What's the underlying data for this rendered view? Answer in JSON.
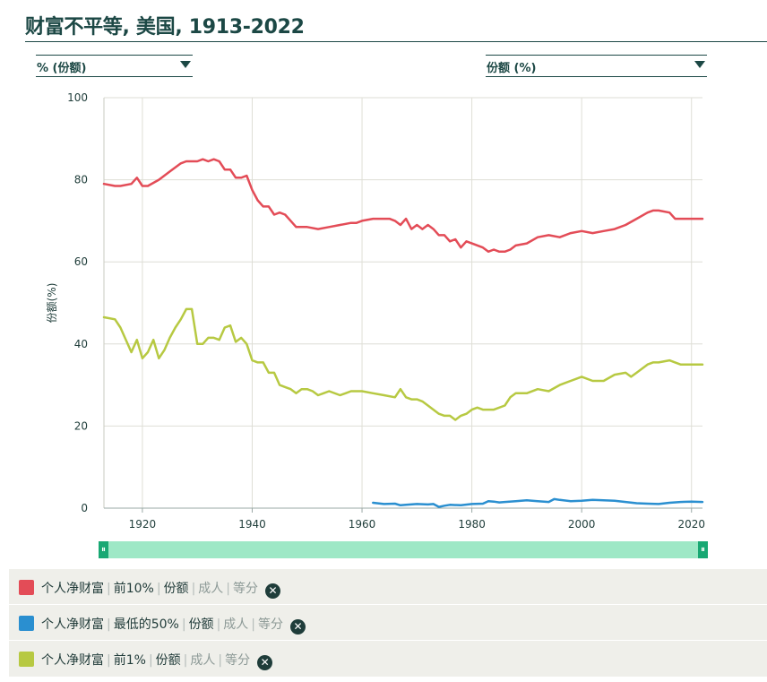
{
  "title": "财富不平等, 美国, 1913-2022",
  "selectors": {
    "left": {
      "label": "% (份额)"
    },
    "right": {
      "label": "份额 (%)"
    }
  },
  "colors": {
    "red": "#e34c57",
    "blue": "#2a8fd0",
    "green": "#b7c942",
    "accent": "#1c4845"
  },
  "slider": {
    "left_icon": "grip-icon",
    "right_icon": "grip-icon"
  },
  "chart_data": {
    "type": "line",
    "title": "财富不平等, 美国, 1913-2022",
    "xlabel": "",
    "ylabel": "份额(%)",
    "xlim": [
      1913,
      2022
    ],
    "ylim": [
      0,
      100
    ],
    "x_ticks": [
      1920,
      1940,
      1960,
      1980,
      2000,
      2020
    ],
    "y_ticks": [
      0,
      20,
      40,
      60,
      80,
      100
    ],
    "grid": true,
    "series": [
      {
        "name": "个人净财富 | 前10% | 份额",
        "color": "#e34c57",
        "x": [
          1913,
          1915,
          1916,
          1918,
          1919,
          1920,
          1921,
          1923,
          1925,
          1927,
          1928,
          1930,
          1931,
          1932,
          1933,
          1934,
          1935,
          1936,
          1937,
          1938,
          1939,
          1940,
          1941,
          1942,
          1943,
          1944,
          1945,
          1946,
          1947,
          1948,
          1950,
          1952,
          1954,
          1956,
          1958,
          1959,
          1960,
          1962,
          1964,
          1965,
          1966,
          1967,
          1968,
          1969,
          1970,
          1971,
          1972,
          1973,
          1974,
          1975,
          1976,
          1977,
          1978,
          1979,
          1980,
          1982,
          1983,
          1984,
          1985,
          1986,
          1987,
          1988,
          1990,
          1992,
          1994,
          1996,
          1998,
          2000,
          2002,
          2004,
          2006,
          2008,
          2010,
          2012,
          2013,
          2014,
          2016,
          2017,
          2018,
          2020,
          2022
        ],
        "values": [
          79,
          78.5,
          78.5,
          79,
          80.5,
          78.5,
          78.5,
          80,
          82,
          84,
          84.5,
          84.5,
          85,
          84.5,
          85,
          84.5,
          82.5,
          82.5,
          80.5,
          80.5,
          81,
          77.5,
          75,
          73.5,
          73.5,
          71.5,
          72,
          71.5,
          70,
          68.5,
          68.5,
          68,
          68.5,
          69,
          69.5,
          69.5,
          70,
          70.5,
          70.5,
          70.5,
          70,
          69,
          70.5,
          68,
          69,
          68,
          69,
          68,
          66.5,
          66.5,
          65,
          65.5,
          63.5,
          65,
          64.5,
          63.5,
          62.5,
          63,
          62.5,
          62.5,
          63,
          64,
          64.5,
          66,
          66.5,
          66,
          67,
          67.5,
          67,
          67.5,
          68,
          69,
          70.5,
          72,
          72.5,
          72.5,
          72,
          70.5,
          70.5,
          70.5,
          70.5
        ]
      },
      {
        "name": "个人净财富 | 最低的50% | 份额",
        "color": "#2a8fd0",
        "x": [
          1962,
          1964,
          1966,
          1967,
          1968,
          1970,
          1972,
          1973,
          1974,
          1975,
          1976,
          1978,
          1980,
          1982,
          1983,
          1984,
          1985,
          1986,
          1988,
          1990,
          1992,
          1994,
          1995,
          1996,
          1998,
          2000,
          2002,
          2004,
          2006,
          2008,
          2010,
          2012,
          2014,
          2016,
          2018,
          2020,
          2022
        ],
        "values": [
          1.3,
          1.0,
          1.1,
          0.7,
          0.8,
          1.0,
          0.9,
          1.0,
          0.3,
          0.6,
          0.8,
          0.7,
          1.0,
          1.1,
          1.7,
          1.6,
          1.4,
          1.5,
          1.7,
          1.9,
          1.7,
          1.5,
          2.2,
          2.0,
          1.7,
          1.8,
          2.0,
          1.9,
          1.8,
          1.5,
          1.2,
          1.1,
          1.0,
          1.3,
          1.5,
          1.6,
          1.5
        ]
      },
      {
        "name": "个人净财富 | 前1% | 份额",
        "color": "#b7c942",
        "x": [
          1913,
          1915,
          1916,
          1917,
          1918,
          1919,
          1920,
          1921,
          1922,
          1923,
          1924,
          1925,
          1926,
          1927,
          1928,
          1929,
          1930,
          1931,
          1932,
          1933,
          1934,
          1935,
          1936,
          1937,
          1938,
          1939,
          1940,
          1941,
          1942,
          1943,
          1944,
          1945,
          1946,
          1947,
          1948,
          1949,
          1950,
          1951,
          1952,
          1953,
          1954,
          1956,
          1957,
          1958,
          1959,
          1960,
          1962,
          1964,
          1966,
          1967,
          1968,
          1969,
          1970,
          1971,
          1972,
          1973,
          1974,
          1975,
          1976,
          1977,
          1978,
          1979,
          1980,
          1981,
          1982,
          1983,
          1984,
          1986,
          1987,
          1988,
          1989,
          1990,
          1992,
          1994,
          1996,
          1998,
          2000,
          2002,
          2004,
          2006,
          2008,
          2009,
          2010,
          2012,
          2013,
          2014,
          2016,
          2017,
          2018,
          2020,
          2022
        ],
        "values": [
          46.5,
          46,
          44,
          41,
          38,
          41,
          36.5,
          38,
          41,
          36.5,
          38.5,
          41.5,
          44,
          46,
          48.5,
          48.5,
          40,
          40,
          41.5,
          41.5,
          41,
          44,
          44.5,
          40.5,
          41.5,
          40,
          36,
          35.5,
          35.5,
          33,
          33,
          30,
          29.5,
          29,
          28,
          29,
          29,
          28.5,
          27.5,
          28,
          28.5,
          27.5,
          28,
          28.5,
          28.5,
          28.5,
          28,
          27.5,
          27,
          29,
          27,
          26.5,
          26.5,
          26,
          25,
          24,
          23,
          22.5,
          22.5,
          21.5,
          22.5,
          23,
          24,
          24.5,
          24,
          24,
          24,
          25,
          27,
          28,
          28,
          28,
          29,
          28.5,
          30,
          31,
          32,
          31,
          31,
          32.5,
          33,
          32,
          33,
          35,
          35.5,
          35.5,
          36,
          35.5,
          35,
          35,
          35
        ]
      }
    ]
  },
  "legend": [
    {
      "color": "#e34c57",
      "segments": [
        "个人净财富",
        "前10%",
        "份额"
      ],
      "muted": [
        "成人",
        "等分"
      ],
      "remove_icon": "close-icon"
    },
    {
      "color": "#2a8fd0",
      "segments": [
        "个人净财富",
        "最低的50%",
        "份额"
      ],
      "muted": [
        "成人",
        "等分"
      ],
      "remove_icon": "close-icon"
    },
    {
      "color": "#b7c942",
      "segments": [
        "个人净财富",
        "前1%",
        "份额"
      ],
      "muted": [
        "成人",
        "等分"
      ],
      "remove_icon": "close-icon"
    }
  ]
}
